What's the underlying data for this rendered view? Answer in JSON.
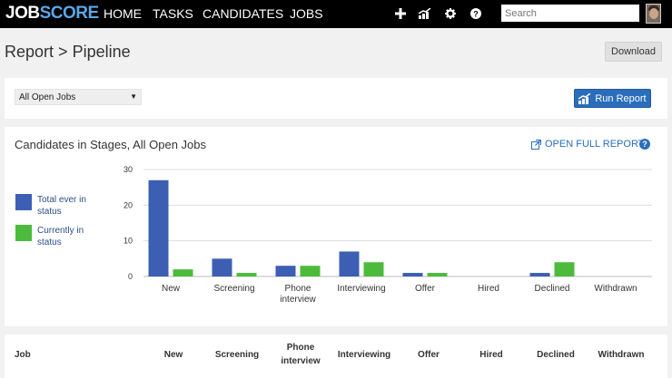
{
  "nav": {
    "logo_left": "JOB",
    "logo_right": "SCORE",
    "items": [
      {
        "label": "HOME"
      },
      {
        "label": "TASKS"
      },
      {
        "label": "CANDIDATES"
      },
      {
        "label": "JOBS"
      }
    ],
    "search_placeholder": "Search",
    "icons": [
      "plus-icon",
      "analytics-icon",
      "gear-icon",
      "help-icon"
    ]
  },
  "header": {
    "breadcrumb_root": "Report",
    "separator": ">",
    "breadcrumb_current": "Pipeline",
    "download_label": "Download"
  },
  "filter": {
    "selected_job": "All Open Jobs",
    "run_label": "Run Report"
  },
  "chart_panel": {
    "title": "Candidates in Stages, All Open Jobs",
    "open_full_label": "OPEN FULL REPORT",
    "help_glyph": "?"
  },
  "colors": {
    "total": "#3c5fb3",
    "current": "#4cbb3c",
    "accent": "#2a6ebb"
  },
  "chart_data": {
    "type": "bar",
    "title": "Candidates in Stages, All Open Jobs",
    "categories": [
      "New",
      "Screening",
      "Phone interview",
      "Interviewing",
      "Offer",
      "Hired",
      "Declined",
      "Withdrawn"
    ],
    "category_lines": [
      [
        "New"
      ],
      [
        "Screening"
      ],
      [
        "Phone",
        "interview"
      ],
      [
        "Interviewing"
      ],
      [
        "Offer"
      ],
      [
        "Hired"
      ],
      [
        "Declined"
      ],
      [
        "Withdrawn"
      ]
    ],
    "series": [
      {
        "name": "Total ever in status",
        "color": "#3c5fb3",
        "values": [
          27,
          5,
          3,
          7,
          1,
          0,
          1,
          0
        ]
      },
      {
        "name": "Currently in status",
        "color": "#4cbb3c",
        "values": [
          2,
          1,
          3,
          4,
          1,
          0,
          4,
          0
        ]
      }
    ],
    "y_ticks": [
      0,
      10,
      20,
      30
    ],
    "ylim": [
      0,
      30
    ],
    "grid": true,
    "legend_position": "left"
  },
  "legend": {
    "total_lines": [
      "Total ever in",
      "status"
    ],
    "current_lines": [
      "Currently in",
      "status"
    ]
  },
  "table": {
    "columns": [
      "Job",
      "New",
      "Screening",
      "Phone interview",
      "Interviewing",
      "Offer",
      "Hired",
      "Declined",
      "Withdrawn"
    ],
    "phone_lines": [
      "Phone",
      "interview"
    ]
  }
}
